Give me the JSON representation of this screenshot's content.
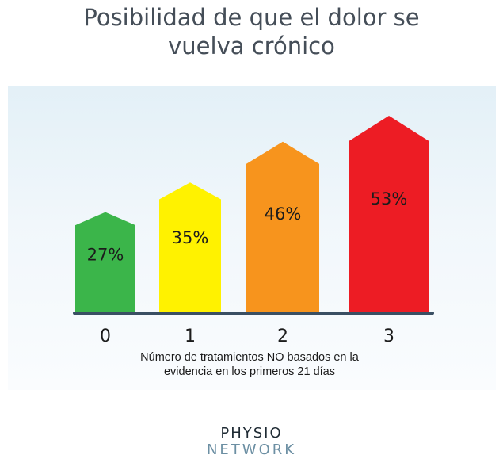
{
  "chart_data": {
    "type": "bar",
    "title": "Posibilidad de que el dolor se vuelva crónico",
    "title_lines": [
      "Posibilidad de que el dolor se",
      "vuelva crónico"
    ],
    "categories": [
      "0",
      "1",
      "2",
      "3"
    ],
    "values": [
      27,
      35,
      46,
      53
    ],
    "value_labels": [
      "27%",
      "35%",
      "46%",
      "53%"
    ],
    "colors": [
      "#3bb54a",
      "#fff200",
      "#f7941d",
      "#ed1c24"
    ],
    "xlabel": "Número de tratamientos NO basados en la evidencia en los primeros 21 días",
    "xlabel_lines": [
      "Número de tratamientos NO basados en la",
      "evidencia en los primeros 21 días"
    ],
    "ylabel": "",
    "ylim": [
      0,
      60
    ],
    "grid": false,
    "bar_shape": "house-arrow"
  },
  "logo": {
    "line1": "PHYSIO",
    "line2": "NETWORK"
  }
}
